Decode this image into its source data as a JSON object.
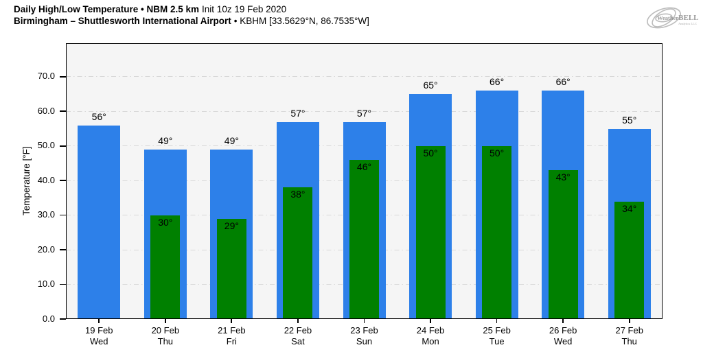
{
  "header": {
    "line1_bold": "Daily High/Low Temperature • NBM 2.5 km",
    "line1_normal": "Init 10z 19 Feb 2020",
    "line2_bold": "Birmingham – Shuttlesworth International Airport",
    "line2_normal": "• KBHM [33.5629°N, 86.7535°W]"
  },
  "logo": {
    "brand_a": "Weather",
    "brand_b": "BELL",
    "sub": "Analytics LLC"
  },
  "chart_data": {
    "type": "bar",
    "title": "Daily High/Low Temperature",
    "model": "NBM 2.5 km",
    "init": "Init 10z 19 Feb 2020",
    "station": "Birmingham – Shuttlesworth International Airport",
    "station_id": "KBHM",
    "coordinates": "33.5629°N, 86.7535°W",
    "categories": [
      "19 Feb",
      "20 Feb",
      "21 Feb",
      "22 Feb",
      "23 Feb",
      "24 Feb",
      "25 Feb",
      "26 Feb",
      "27 Feb"
    ],
    "day_labels": [
      "Wed",
      "Thu",
      "Fri",
      "Sat",
      "Sun",
      "Mon",
      "Tue",
      "Wed",
      "Thu"
    ],
    "series": [
      {
        "name": "High",
        "color": "#2d80e9",
        "values": [
          56,
          49,
          49,
          57,
          57,
          65,
          66,
          66,
          55
        ]
      },
      {
        "name": "Low",
        "color": "#008000",
        "values": [
          null,
          30,
          29,
          38,
          46,
          50,
          50,
          43,
          34
        ]
      }
    ],
    "value_suffix": "°",
    "ylabel": "Temperature [°F]",
    "yticks": [
      0,
      10,
      20,
      30,
      40,
      50,
      60,
      70
    ],
    "ytick_labels": [
      "0.0",
      "10.0",
      "20.0",
      "30.0",
      "40.0",
      "50.0",
      "60.0",
      "70.0"
    ],
    "ylim": [
      0,
      79.7
    ],
    "grid": "horizontal dash-dot",
    "grid_color": "#d8d8d8",
    "plot_background": "#f5f5f5",
    "legend": "none"
  }
}
